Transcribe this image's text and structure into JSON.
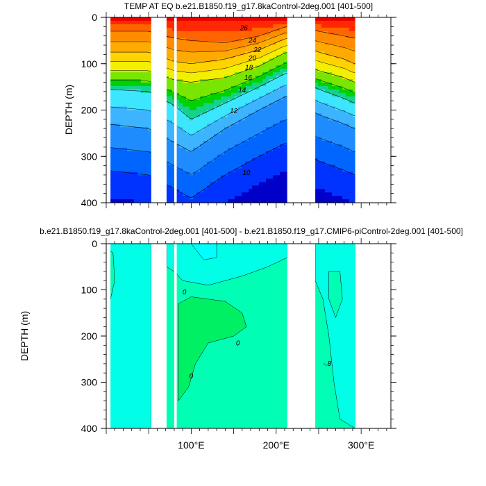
{
  "chart_data": [
    {
      "type": "heatmap",
      "subtype": "filled-contour",
      "title": "TEMP AT EQ b.e21.B1850.f19_g17.8kaControl-2deg.001 [401-500]",
      "ylabel": "DEPTH (m)",
      "ylim": [
        400,
        0
      ],
      "yticks": [
        "0",
        "100",
        "200",
        "300",
        "400"
      ],
      "xlim": [
        0,
        335
      ],
      "xticks": [],
      "grid": false,
      "colors": [
        "#0000c8",
        "#0033ff",
        "#0066ff",
        "#1e8cff",
        "#3cb4ff",
        "#3ce6ff",
        "#14d28c",
        "#00d200",
        "#78e600",
        "#f0f000",
        "#ffd200",
        "#ffaa00",
        "#ff8c00",
        "#ff6400",
        "#ff2800",
        "#e60000"
      ],
      "land_gaps": [
        [
          53,
          71
        ],
        [
          80,
          83
        ],
        [
          213,
          246
        ],
        [
          293,
          335
        ]
      ],
      "contour_levels_labeled": [
        "26",
        "24",
        "22",
        "20",
        "18",
        "16",
        "14",
        "12",
        "10",
        "14"
      ],
      "x": [
        0,
        50,
        80,
        100,
        140,
        180,
        212,
        250,
        280,
        292
      ],
      "isotherm_depths": {
        "26": [
          30,
          30,
          45,
          50,
          55,
          40,
          20,
          30,
          40,
          45
        ],
        "22": [
          75,
          75,
          95,
          100,
          90,
          70,
          45,
          75,
          90,
          100
        ],
        "18": [
          115,
          115,
          135,
          140,
          130,
          105,
          75,
          115,
          130,
          140
        ],
        "14": [
          155,
          160,
          190,
          220,
          185,
          150,
          120,
          155,
          175,
          185
        ],
        "12": [
          230,
          240,
          270,
          290,
          240,
          200,
          170,
          210,
          230,
          240
        ],
        "10": [
          330,
          340,
          370,
          390,
          340,
          300,
          270,
          310,
          330,
          340
        ]
      }
    },
    {
      "type": "heatmap",
      "subtype": "filled-contour",
      "title": "b.e21.B1850.f19_g17.8kaControl-2deg.001 [401-500] - b.e21.B1850.f19_g17.CMIP6-piControl-2deg.001 [401-500]",
      "ylabel": "DEPTH (m)",
      "ylim": [
        400,
        0
      ],
      "yticks": [
        "0",
        "100",
        "200",
        "300",
        "400"
      ],
      "xlim": [
        0,
        335
      ],
      "xticks": [
        "100°E",
        "200°E",
        "300°E"
      ],
      "xtick_values": [
        100,
        200,
        300
      ],
      "grid": false,
      "colors": [
        "#00ffe6",
        "#00ffb4",
        "#00f064",
        "#00ffff"
      ],
      "land_gaps": [
        [
          53,
          71
        ],
        [
          80,
          83
        ],
        [
          213,
          246
        ],
        [
          293,
          335
        ]
      ],
      "contour_labels": [
        "0",
        "0",
        "0",
        "-.8"
      ],
      "regions": [
        {
          "name": "positive-core",
          "x": [
            85,
            165
          ],
          "depth": [
            120,
            330
          ],
          "color": "#00f064"
        },
        {
          "name": "near-zero",
          "x": [
            80,
            212
          ],
          "depth": [
            80,
            400
          ],
          "color": "#00ffb4"
        }
      ]
    }
  ]
}
